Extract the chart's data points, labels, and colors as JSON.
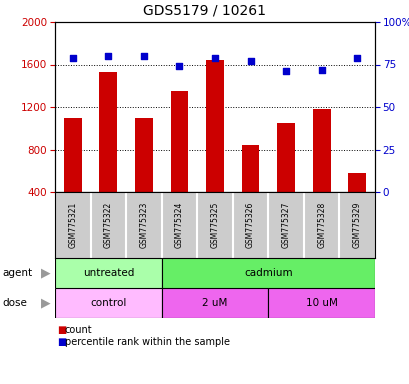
{
  "title": "GDS5179 / 10261",
  "samples": [
    "GSM775321",
    "GSM775322",
    "GSM775323",
    "GSM775324",
    "GSM775325",
    "GSM775326",
    "GSM775327",
    "GSM775328",
    "GSM775329"
  ],
  "counts": [
    1100,
    1530,
    1100,
    1350,
    1640,
    840,
    1050,
    1180,
    580
  ],
  "percentiles": [
    79,
    80,
    80,
    74,
    79,
    77,
    71,
    72,
    79
  ],
  "ylim_left": [
    400,
    2000
  ],
  "ylim_right": [
    0,
    100
  ],
  "yticks_left": [
    400,
    800,
    1200,
    1600,
    2000
  ],
  "yticks_right": [
    0,
    25,
    50,
    75,
    100
  ],
  "bar_color": "#cc0000",
  "dot_color": "#0000cc",
  "bar_width": 0.5,
  "agent_color_untreated": "#aaffaa",
  "agent_color_cadmium": "#66ee66",
  "dose_color_control": "#ffbbff",
  "dose_color_2um": "#ee66ee",
  "dose_color_10um": "#ee66ee",
  "sample_bg_color": "#cccccc",
  "sample_divider_color": "#ffffff",
  "background_color": "#ffffff",
  "left_axis_color": "#cc0000",
  "right_axis_color": "#0000cc"
}
